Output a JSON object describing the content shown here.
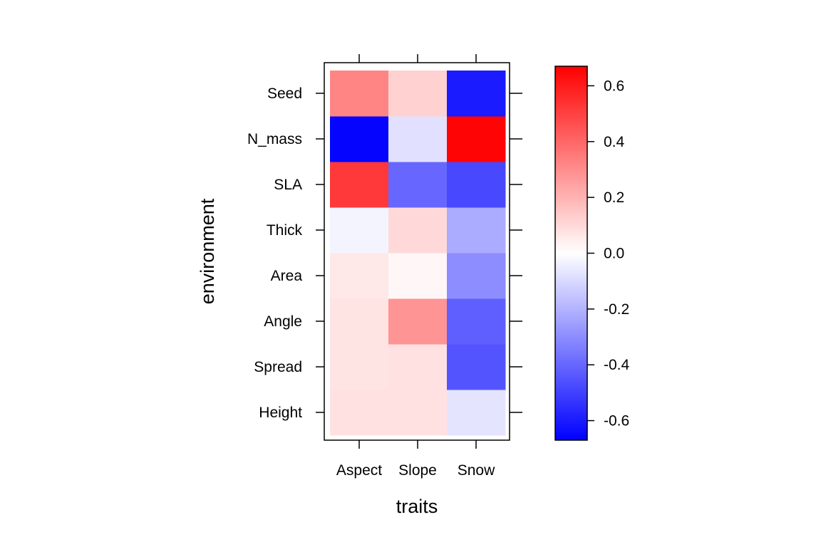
{
  "chart_data": {
    "type": "heatmap",
    "xlabel": "traits",
    "ylabel": "environment",
    "x_categories": [
      "Aspect",
      "Slope",
      "Snow"
    ],
    "y_categories": [
      "Height",
      "Spread",
      "Angle",
      "Area",
      "Thick",
      "SLA",
      "N_mass",
      "Seed"
    ],
    "values": [
      [
        0.08,
        0.08,
        -0.07
      ],
      [
        0.07,
        0.08,
        -0.45
      ],
      [
        0.07,
        0.28,
        -0.42
      ],
      [
        0.06,
        0.02,
        -0.3
      ],
      [
        -0.03,
        0.1,
        -0.22
      ],
      [
        0.52,
        -0.4,
        -0.48
      ],
      [
        -0.66,
        -0.08,
        0.66
      ],
      [
        0.32,
        0.12,
        -0.6
      ]
    ],
    "colorbar": {
      "range": [
        -0.67,
        0.67
      ],
      "ticks": [
        -0.6,
        -0.4,
        -0.2,
        0.0,
        0.2,
        0.4,
        0.6
      ],
      "tick_labels": [
        "-0.6",
        "-0.4",
        "-0.2",
        "0.0",
        "0.2",
        "0.4",
        "0.6"
      ],
      "colors": [
        "#0000ff",
        "#ffffff",
        "#ff0000"
      ]
    }
  }
}
